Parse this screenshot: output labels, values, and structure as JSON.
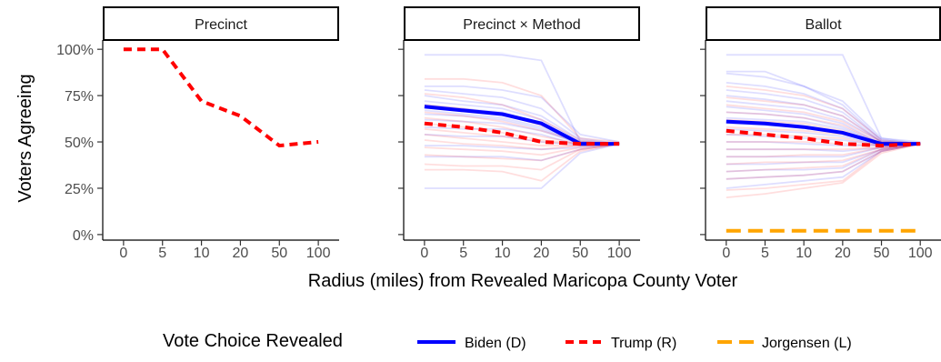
{
  "chart_data": {
    "type": "line",
    "ylabel": "Voters Agreeing",
    "xlabel": "Radius (miles) from Revealed Maricopa County Voter",
    "x_categories": [
      "0",
      "5",
      "10",
      "20",
      "50",
      "100"
    ],
    "y_ticks": [
      {
        "value": 0,
        "label": "0%"
      },
      {
        "value": 25,
        "label": "25%"
      },
      {
        "value": 50,
        "label": "50%"
      },
      {
        "value": 75,
        "label": "75%"
      },
      {
        "value": 100,
        "label": "100%"
      }
    ],
    "ylim": [
      -3,
      105
    ],
    "grid": false,
    "legend": {
      "position": "bottom",
      "title": "Vote Choice Revealed",
      "items": [
        {
          "label": "Biden (D)",
          "color": "#0000ff",
          "dash": "solid"
        },
        {
          "label": "Trump (R)",
          "color": "#ff0000",
          "dash": "dashed"
        },
        {
          "label": "Jorgensen (L)",
          "color": "#ffa500",
          "dash": "longdash"
        }
      ]
    },
    "panels": [
      {
        "title": "Precinct",
        "series": [
          {
            "name": "Trump (R)",
            "color": "#ff0000",
            "dash": "dashed",
            "values": [
              100,
              100,
              72,
              64,
              48,
              50
            ]
          }
        ],
        "faint": []
      },
      {
        "title": "Precinct × Method",
        "series": [
          {
            "name": "Biden (D)",
            "color": "#0000ff",
            "dash": "solid",
            "values": [
              69,
              67,
              65,
              60,
              49,
              49
            ]
          },
          {
            "name": "Trump (R)",
            "color": "#ff0000",
            "dash": "dashed",
            "values": [
              60,
              58,
              55,
              50,
              49,
              49
            ]
          }
        ],
        "faint": [
          {
            "color": "#0000ff",
            "values": [
              97,
              97,
              97,
              94,
              50,
              49
            ]
          },
          {
            "color": "#0000ff",
            "values": [
              80,
              80,
              78,
              74,
              54,
              50
            ]
          },
          {
            "color": "#0000ff",
            "values": [
              78,
              76,
              74,
              68,
              52,
              49
            ]
          },
          {
            "color": "#0000ff",
            "values": [
              75,
              72,
              70,
              64,
              51,
              49
            ]
          },
          {
            "color": "#0000ff",
            "values": [
              72,
              70,
              68,
              62,
              50,
              49
            ]
          },
          {
            "color": "#0000ff",
            "values": [
              70,
              68,
              66,
              60,
              50,
              49
            ]
          },
          {
            "color": "#0000ff",
            "values": [
              67,
              65,
              63,
              58,
              49,
              49
            ]
          },
          {
            "color": "#0000ff",
            "values": [
              65,
              64,
              62,
              57,
              49,
              49
            ]
          },
          {
            "color": "#0000ff",
            "values": [
              62,
              61,
              60,
              56,
              49,
              49
            ]
          },
          {
            "color": "#0000ff",
            "values": [
              58,
              57,
              57,
              54,
              48,
              49
            ]
          },
          {
            "color": "#0000ff",
            "values": [
              54,
              53,
              53,
              50,
              48,
              49
            ]
          },
          {
            "color": "#0000ff",
            "values": [
              48,
              48,
              47,
              46,
              47,
              49
            ]
          },
          {
            "color": "#0000ff",
            "values": [
              42,
              42,
              42,
              40,
              46,
              49
            ]
          },
          {
            "color": "#0000ff",
            "values": [
              25,
              25,
              25,
              25,
              44,
              49
            ]
          },
          {
            "color": "#ff0000",
            "values": [
              84,
              84,
              82,
              75,
              52,
              50
            ]
          },
          {
            "color": "#ff0000",
            "values": [
              76,
              74,
              70,
              62,
              51,
              49
            ]
          },
          {
            "color": "#ff0000",
            "values": [
              70,
              68,
              65,
              59,
              50,
              49
            ]
          },
          {
            "color": "#ff0000",
            "values": [
              66,
              64,
              61,
              56,
              50,
              49
            ]
          },
          {
            "color": "#ff0000",
            "values": [
              63,
              61,
              58,
              53,
              49,
              49
            ]
          },
          {
            "color": "#ff0000",
            "values": [
              60,
              58,
              55,
              51,
              49,
              49
            ]
          },
          {
            "color": "#ff0000",
            "values": [
              57,
              55,
              53,
              50,
              49,
              49
            ]
          },
          {
            "color": "#ff0000",
            "values": [
              54,
              52,
              50,
              48,
              48,
              49
            ]
          },
          {
            "color": "#ff0000",
            "values": [
              51,
              49,
              48,
              46,
              48,
              49
            ]
          },
          {
            "color": "#ff0000",
            "values": [
              47,
              46,
              45,
              43,
              47,
              49
            ]
          },
          {
            "color": "#ff0000",
            "values": [
              43,
              42,
              41,
              40,
              46,
              49
            ]
          },
          {
            "color": "#ff0000",
            "values": [
              38,
              37,
              37,
              35,
              46,
              49
            ]
          },
          {
            "color": "#ff0000",
            "values": [
              35,
              35,
              34,
              29,
              45,
              49
            ]
          }
        ]
      },
      {
        "title": "Ballot",
        "series": [
          {
            "name": "Biden (D)",
            "color": "#0000ff",
            "dash": "solid",
            "values": [
              61,
              60,
              58,
              55,
              49,
              49
            ]
          },
          {
            "name": "Trump (R)",
            "color": "#ff0000",
            "dash": "dashed",
            "values": [
              56,
              54,
              52,
              49,
              48,
              49
            ]
          },
          {
            "name": "Jorgensen (L)",
            "color": "#ffa500",
            "dash": "longdash",
            "values": [
              2,
              2,
              2,
              2,
              2,
              2
            ]
          }
        ],
        "faint": [
          {
            "color": "#0000ff",
            "values": [
              97,
              97,
              97,
              97,
              52,
              50
            ]
          },
          {
            "color": "#0000ff",
            "values": [
              88,
              88,
              80,
              72,
              52,
              49
            ]
          },
          {
            "color": "#0000ff",
            "values": [
              87,
              85,
              80,
              70,
              51,
              49
            ]
          },
          {
            "color": "#0000ff",
            "values": [
              82,
              80,
              76,
              68,
              51,
              49
            ]
          },
          {
            "color": "#0000ff",
            "values": [
              78,
              76,
              73,
              66,
              50,
              49
            ]
          },
          {
            "color": "#0000ff",
            "values": [
              75,
              73,
              70,
              64,
              50,
              49
            ]
          },
          {
            "color": "#0000ff",
            "values": [
              72,
              70,
              68,
              62,
              50,
              49
            ]
          },
          {
            "color": "#0000ff",
            "values": [
              69,
              67,
              65,
              60,
              49,
              49
            ]
          },
          {
            "color": "#0000ff",
            "values": [
              66,
              65,
              63,
              58,
              49,
              49
            ]
          },
          {
            "color": "#0000ff",
            "values": [
              63,
              62,
              61,
              57,
              49,
              49
            ]
          },
          {
            "color": "#0000ff",
            "values": [
              60,
              59,
              58,
              55,
              49,
              49
            ]
          },
          {
            "color": "#0000ff",
            "values": [
              57,
              56,
              55,
              53,
              48,
              49
            ]
          },
          {
            "color": "#0000ff",
            "values": [
              54,
              53,
              52,
              51,
              48,
              49
            ]
          },
          {
            "color": "#0000ff",
            "values": [
              50,
              50,
              49,
              48,
              48,
              49
            ]
          },
          {
            "color": "#0000ff",
            "values": [
              46,
              46,
              46,
              45,
              47,
              49
            ]
          },
          {
            "color": "#0000ff",
            "values": [
              42,
              42,
              42,
              42,
              47,
              49
            ]
          },
          {
            "color": "#0000ff",
            "values": [
              38,
              38,
              39,
              39,
              46,
              49
            ]
          },
          {
            "color": "#0000ff",
            "values": [
              34,
              35,
              35,
              36,
              46,
              49
            ]
          },
          {
            "color": "#0000ff",
            "values": [
              30,
              31,
              32,
              34,
              45,
              49
            ]
          },
          {
            "color": "#0000ff",
            "values": [
              25,
              27,
              29,
              31,
              45,
              49
            ]
          },
          {
            "color": "#ff0000",
            "values": [
              80,
              78,
              75,
              68,
              51,
              49
            ]
          },
          {
            "color": "#ff0000",
            "values": [
              74,
              72,
              70,
              64,
              50,
              49
            ]
          },
          {
            "color": "#ff0000",
            "values": [
              70,
              68,
              66,
              61,
              50,
              49
            ]
          },
          {
            "color": "#ff0000",
            "values": [
              66,
              65,
              63,
              59,
              49,
              49
            ]
          },
          {
            "color": "#ff0000",
            "values": [
              62,
              61,
              60,
              56,
              49,
              49
            ]
          },
          {
            "color": "#ff0000",
            "values": [
              58,
              57,
              56,
              54,
              49,
              49
            ]
          },
          {
            "color": "#ff0000",
            "values": [
              54,
              54,
              53,
              52,
              48,
              49
            ]
          },
          {
            "color": "#ff0000",
            "values": [
              50,
              50,
              50,
              49,
              48,
              49
            ]
          },
          {
            "color": "#ff0000",
            "values": [
              46,
              46,
              46,
              46,
              47,
              49
            ]
          },
          {
            "color": "#ff0000",
            "values": [
              42,
              42,
              43,
              43,
              47,
              49
            ]
          },
          {
            "color": "#ff0000",
            "values": [
              38,
              39,
              39,
              40,
              46,
              49
            ]
          },
          {
            "color": "#ff0000",
            "values": [
              34,
              35,
              36,
              37,
              46,
              49
            ]
          },
          {
            "color": "#ff0000",
            "values": [
              30,
              31,
              32,
              34,
              45,
              49
            ]
          },
          {
            "color": "#ff0000",
            "values": [
              24,
              25,
              27,
              29,
              45,
              49
            ]
          },
          {
            "color": "#ff0000",
            "values": [
              20,
              22,
              25,
              28,
              44,
              49
            ]
          }
        ]
      }
    ]
  }
}
